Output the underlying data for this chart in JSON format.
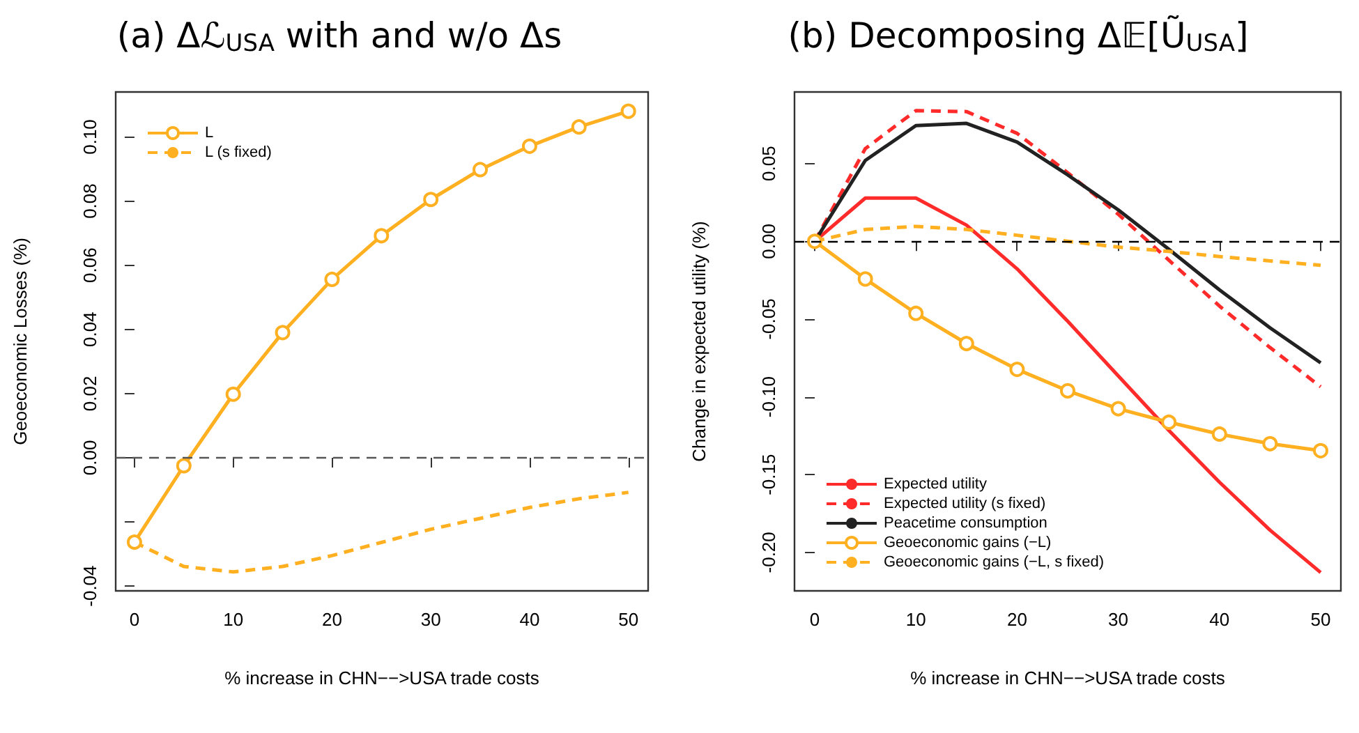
{
  "chart_data": [
    {
      "type": "line",
      "title": "(a) Δℒ$_{USA}$ with and w/o Δs",
      "xlabel": "% increase in CHN−−>USA trade costs",
      "ylabel": "Geoeconomic Losses (%)",
      "x": [
        0,
        5,
        10,
        15,
        20,
        25,
        30,
        35,
        40,
        45,
        50
      ],
      "xlim": [
        -1.9,
        52
      ],
      "xticks": [
        0,
        10,
        20,
        30,
        40,
        50
      ],
      "ylim": [
        -0.0415,
        0.114
      ],
      "yticks": [
        {
          "value": -0.04,
          "label": "-0.04"
        },
        {
          "value": -0.02,
          "label": null
        },
        {
          "value": 0,
          "label": "0.00"
        },
        {
          "value": 0.02,
          "label": "0.02"
        },
        {
          "value": 0.04,
          "label": "0.04"
        },
        {
          "value": 0.06,
          "label": "0.06"
        },
        {
          "value": 0.08,
          "label": "0.08"
        },
        {
          "value": 0.1,
          "label": "0.10"
        }
      ],
      "grid": false,
      "legend": "top left",
      "ref_lines": [
        {
          "axis": "y",
          "value": 0,
          "color": "#555555",
          "line_style": "dashed"
        }
      ],
      "series": [
        {
          "name": "L",
          "color": "#ffb020",
          "marker": "circle",
          "line_style": "solid",
          "values": [
            -0.0263,
            -0.0025,
            0.0198,
            0.039,
            0.0556,
            0.0692,
            0.0805,
            0.0898,
            0.0971,
            0.1031,
            0.108
          ]
        },
        {
          "name": "L (s fixed)",
          "color": "#ffb020",
          "marker": "none",
          "line_style": "dashed",
          "values": [
            -0.0263,
            -0.0339,
            -0.0356,
            -0.0339,
            -0.0305,
            -0.0264,
            -0.0223,
            -0.0189,
            -0.0155,
            -0.0128,
            -0.0108
          ]
        }
      ]
    },
    {
      "type": "line",
      "title": "(b) Decomposing Δ𝔼[Ũ$_{USA}$]",
      "xlabel": "% increase in CHN−−>USA trade costs",
      "ylabel": "Change in expected utility (%)",
      "x": [
        0,
        5,
        10,
        15,
        20,
        25,
        30,
        35,
        40,
        45,
        50
      ],
      "xlim": [
        -2,
        52
      ],
      "xticks": [
        0,
        10,
        20,
        30,
        40,
        50
      ],
      "ylim": [
        -0.2247,
        0.096
      ],
      "yticks": [
        {
          "value": -0.2,
          "label": "-0.20"
        },
        {
          "value": -0.15,
          "label": "-0.15"
        },
        {
          "value": -0.1,
          "label": "-0.10"
        },
        {
          "value": -0.05,
          "label": "-0.05"
        },
        {
          "value": 0,
          "label": "0.00"
        },
        {
          "value": 0.05,
          "label": "0.05"
        }
      ],
      "grid": false,
      "legend": "bottom left",
      "ref_lines": [
        {
          "axis": "y",
          "value": 0,
          "color": "#000000",
          "line_style": "dashed"
        }
      ],
      "series": [
        {
          "name": "Expected utility",
          "color": "#ff2a2a",
          "marker": "none",
          "line_style": "solid",
          "values": [
            0,
            0.0278,
            0.0278,
            0.0104,
            -0.0177,
            -0.0514,
            -0.0865,
            -0.1216,
            -0.1548,
            -0.1857,
            -0.2129
          ]
        },
        {
          "name": "Expected utility (s fixed)",
          "color": "#ff2a2a",
          "marker": "none",
          "line_style": "dashed",
          "values": [
            0,
            0.0596,
            0.084,
            0.0834,
            0.0694,
            0.0441,
            0.0174,
            -0.0121,
            -0.0416,
            -0.0683,
            -0.0935
          ]
        },
        {
          "name": "Peacetime consumption",
          "color": "#222222",
          "marker": "none",
          "line_style": "solid",
          "values": [
            0,
            0.052,
            0.0744,
            0.0758,
            0.0638,
            0.0427,
            0.0202,
            -0.0051,
            -0.0312,
            -0.0556,
            -0.0781
          ]
        },
        {
          "name": "Geoeconomic gains (−L)",
          "color": "#ffb020",
          "marker": "circle",
          "line_style": "solid",
          "values": [
            0,
            -0.0242,
            -0.0463,
            -0.0657,
            -0.0823,
            -0.0961,
            -0.1076,
            -0.1163,
            -0.1239,
            -0.1301,
            -0.1346
          ]
        },
        {
          "name": "Geoeconomic gains (−L, s fixed)",
          "color": "#ffb020",
          "marker": "none",
          "line_style": "dashed",
          "values": [
            0,
            0.0076,
            0.0096,
            0.0076,
            0.0039,
            0,
            -0.0037,
            -0.0065,
            -0.0098,
            -0.0126,
            -0.0154
          ]
        }
      ]
    }
  ]
}
